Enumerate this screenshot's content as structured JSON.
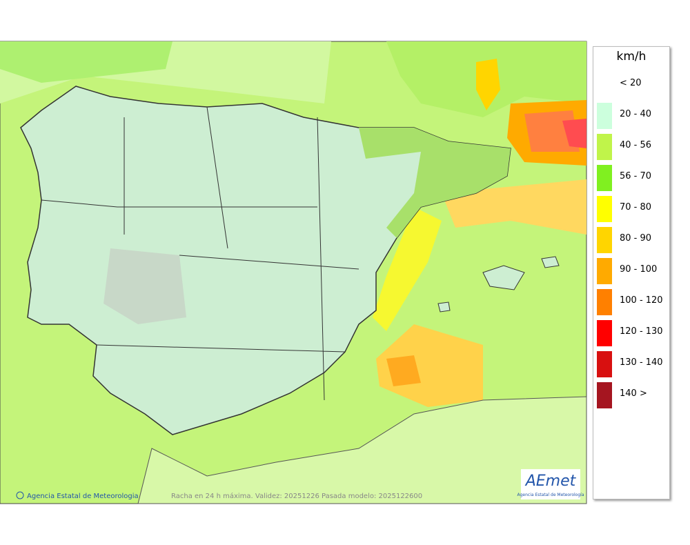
{
  "legend": {
    "title": "km/h",
    "items": [
      {
        "label": "< 20"
      },
      {
        "label": "20 - 40",
        "color": "#ccffdd"
      },
      {
        "label": "40 - 56",
        "color": "#c0f44a"
      },
      {
        "label": "56 - 70",
        "color": "#80f020"
      },
      {
        "label": "70 - 80",
        "color": "#ffff00"
      },
      {
        "label": "80 - 90",
        "color": "#ffd500"
      },
      {
        "label": "90 - 100",
        "color": "#ffaa00"
      },
      {
        "label": "100 - 120",
        "color": "#ff8000"
      },
      {
        "label": "120 - 130",
        "color": "#ff0000"
      },
      {
        "label": "130 - 140",
        "color": "#d81010"
      },
      {
        "label": "140 >",
        "color": "#a51520"
      }
    ]
  },
  "footer": {
    "credit": "Agencia Estatal de Meteorologia",
    "caption": "Racha en 24 h máxima. Validez: 20251226 Pasada modelo: 2025122600"
  },
  "logo": {
    "name": "AEmet",
    "subtitle": "Agencia Estatal de Meteorología"
  }
}
